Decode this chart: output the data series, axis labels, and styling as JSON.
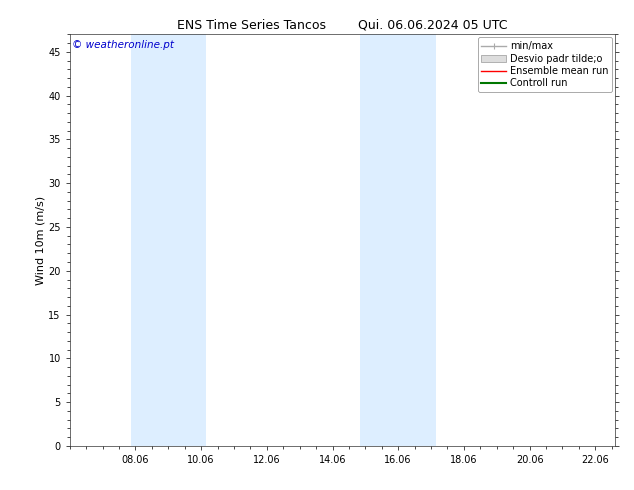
{
  "title_left": "ENS Time Series Tancos",
  "title_right": "Qui. 06.06.2024 05 UTC",
  "ylabel": "Wind 10m (m/s)",
  "watermark": "© weatheronline.pt",
  "background_color": "#ffffff",
  "plot_bg_color": "#ffffff",
  "xlim_start": 6.0,
  "xlim_end": 22.6,
  "ylim_min": 0,
  "ylim_max": 47,
  "yticks": [
    0,
    5,
    10,
    15,
    20,
    25,
    30,
    35,
    40,
    45
  ],
  "xtick_labels": [
    "08.06",
    "10.06",
    "12.06",
    "14.06",
    "16.06",
    "18.06",
    "20.06",
    "22.06"
  ],
  "xtick_positions": [
    8,
    10,
    12,
    14,
    16,
    18,
    20,
    22
  ],
  "shaded_bands": [
    {
      "x_start": 7.85,
      "x_end": 10.15
    },
    {
      "x_start": 14.85,
      "x_end": 17.15
    }
  ],
  "shade_color": "#ddeeff",
  "legend_entries": [
    {
      "label": "min/max",
      "color": "#aaaaaa",
      "lw": 1.0,
      "style": "line_with_tick"
    },
    {
      "label": "Desvio padr tilde;o",
      "color": "#dddddd",
      "lw": 5,
      "style": "band"
    },
    {
      "label": "Ensemble mean run",
      "color": "#ff0000",
      "lw": 1.0,
      "style": "line"
    },
    {
      "label": "Controll run",
      "color": "#007700",
      "lw": 1.5,
      "style": "line"
    }
  ],
  "title_fontsize": 9,
  "axis_label_fontsize": 8,
  "tick_fontsize": 7,
  "legend_fontsize": 7
}
